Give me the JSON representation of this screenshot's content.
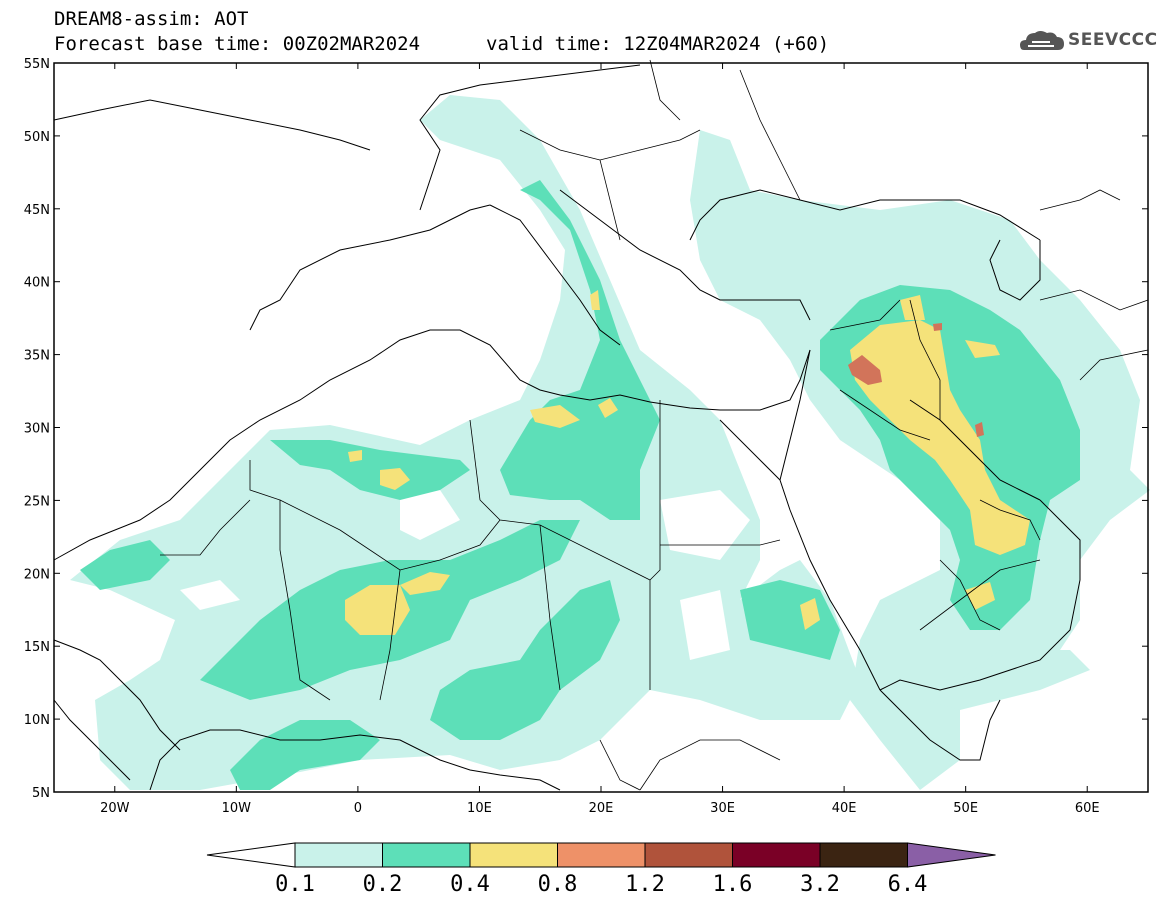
{
  "header": {
    "title": "DREAM8-assim: AOT",
    "base_time": "Forecast base time: 00Z02MAR2024",
    "valid_time": "valid time: 12Z04MAR2024 (+60)"
  },
  "logo": {
    "text": "SEEVCCC",
    "icon": "cloud-icon"
  },
  "map": {
    "lat_labels": [
      "55N",
      "50N",
      "45N",
      "40N",
      "35N",
      "30N",
      "25N",
      "20N",
      "15N",
      "10N",
      "5N"
    ],
    "lon_labels": [
      "20W",
      "10W",
      "0",
      "10E",
      "20E",
      "30E",
      "40E",
      "50E",
      "60E"
    ],
    "lat_range": [
      5,
      55
    ],
    "lon_range": [
      -25,
      65
    ]
  },
  "colorbar": {
    "labels": [
      "0.1",
      "0.2",
      "0.4",
      "0.8",
      "1.2",
      "1.6",
      "3.2",
      "6.4"
    ],
    "colors": [
      "#ffffff",
      "#c9f2ea",
      "#5ddfb8",
      "#f5e27a",
      "#ee9168",
      "#b0533b",
      "#7a0026",
      "#3b2412",
      "#8a5fa6"
    ]
  },
  "colors": {
    "c1": "#c9f2ea",
    "c2": "#5ddfb8",
    "c3": "#f5e27a",
    "c4": "#ee9168",
    "c5": "#d2745a"
  }
}
